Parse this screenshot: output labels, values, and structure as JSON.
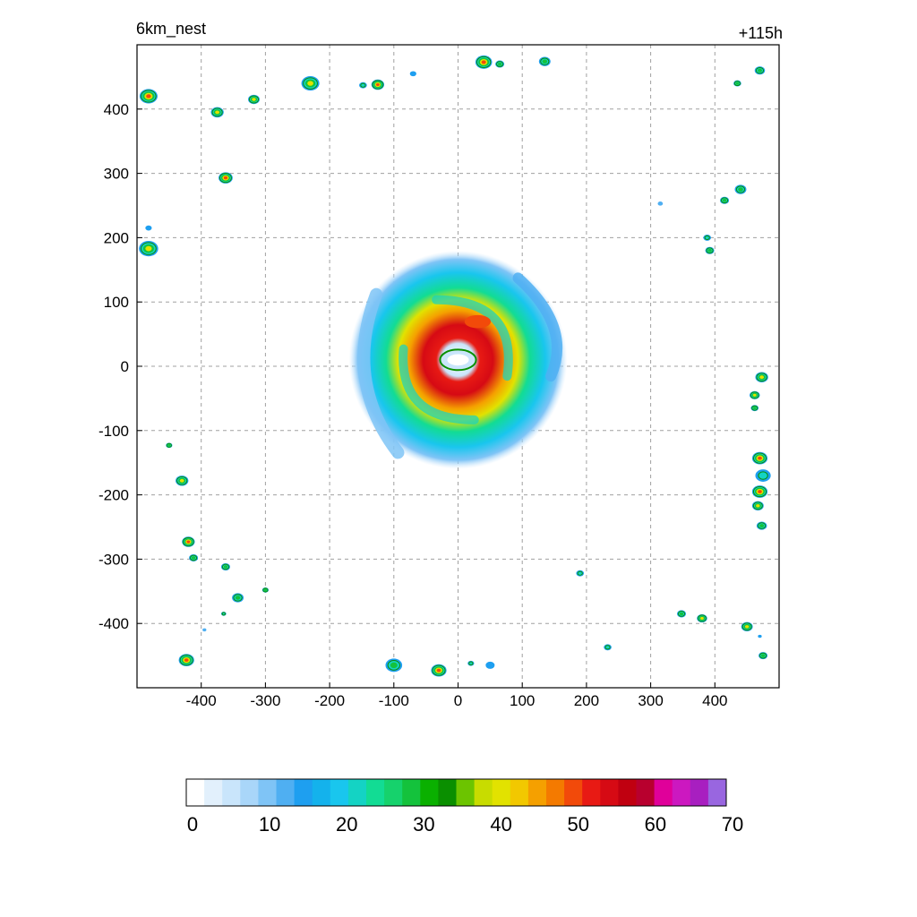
{
  "header": {
    "title": "6km_nest",
    "time": "+115h"
  },
  "colors": {
    "scale": [
      "#ffffff",
      "#e2f0fc",
      "#c9e5fb",
      "#a9d6f9",
      "#7fc4f6",
      "#4faff2",
      "#1e9ff0",
      "#14b2ec",
      "#19c6ee",
      "#14d3c4",
      "#12dc94",
      "#16d26c",
      "#14c23c",
      "#0ab000",
      "#0a8f00",
      "#6cc400",
      "#c8dc00",
      "#e2e200",
      "#f2c800",
      "#f5a000",
      "#f47a00",
      "#f24a0a",
      "#e81a14",
      "#d60a14",
      "#c00010",
      "#b8002e",
      "#e0009a",
      "#cc18c0",
      "#a81fc0",
      "#9966e0"
    ]
  },
  "chart_data": {
    "type": "heatmap",
    "title": "6km_nest",
    "annotation": "+115h",
    "xlabel": "",
    "ylabel": "",
    "xlim": [
      -500,
      500
    ],
    "ylim": [
      -500,
      500
    ],
    "xticks": [
      -400,
      -300,
      -200,
      -100,
      0,
      100,
      200,
      300,
      400
    ],
    "yticks": [
      -400,
      -300,
      -200,
      -100,
      0,
      100,
      200,
      300,
      400
    ],
    "grid": true,
    "colorbar": {
      "min": 0,
      "max": 70,
      "ticks": [
        0,
        10,
        20,
        30,
        40,
        50,
        60,
        70
      ],
      "placement": "bottom"
    },
    "storm": {
      "center": [
        0,
        10
      ],
      "outer_radius": 170,
      "eye_radius": [
        28,
        16
      ],
      "eyewall_value": 50,
      "rainband_value": 22
    },
    "cells": [
      {
        "x": -482,
        "y": 420,
        "r": 14,
        "v": 52
      },
      {
        "x": -375,
        "y": 395,
        "r": 10,
        "v": 46
      },
      {
        "x": -318,
        "y": 415,
        "r": 9,
        "v": 40
      },
      {
        "x": -230,
        "y": 440,
        "r": 14,
        "v": 42
      },
      {
        "x": -148,
        "y": 437,
        "r": 6,
        "v": 24
      },
      {
        "x": -125,
        "y": 438,
        "r": 10,
        "v": 50
      },
      {
        "x": -70,
        "y": 455,
        "r": 5,
        "v": 18
      },
      {
        "x": 40,
        "y": 473,
        "r": 13,
        "v": 50
      },
      {
        "x": 65,
        "y": 470,
        "r": 7,
        "v": 32
      },
      {
        "x": 135,
        "y": 474,
        "r": 9,
        "v": 34
      },
      {
        "x": 435,
        "y": 440,
        "r": 6,
        "v": 30
      },
      {
        "x": 470,
        "y": 460,
        "r": 8,
        "v": 38
      },
      {
        "x": -362,
        "y": 293,
        "r": 11,
        "v": 52
      },
      {
        "x": -482,
        "y": 183,
        "r": 15,
        "v": 46
      },
      {
        "x": -482,
        "y": 215,
        "r": 5,
        "v": 15
      },
      {
        "x": 315,
        "y": 253,
        "r": 4,
        "v": 12
      },
      {
        "x": 415,
        "y": 258,
        "r": 7,
        "v": 32
      },
      {
        "x": 440,
        "y": 275,
        "r": 9,
        "v": 34
      },
      {
        "x": 388,
        "y": 200,
        "r": 6,
        "v": 28
      },
      {
        "x": 392,
        "y": 180,
        "r": 7,
        "v": 36
      },
      {
        "x": 473,
        "y": -17,
        "r": 10,
        "v": 40
      },
      {
        "x": 462,
        "y": -45,
        "r": 8,
        "v": 46
      },
      {
        "x": 462,
        "y": -65,
        "r": 6,
        "v": 36
      },
      {
        "x": 470,
        "y": -143,
        "r": 12,
        "v": 52
      },
      {
        "x": 475,
        "y": -170,
        "r": 12,
        "v": 28
      },
      {
        "x": 470,
        "y": -195,
        "r": 12,
        "v": 50
      },
      {
        "x": 467,
        "y": -217,
        "r": 9,
        "v": 44
      },
      {
        "x": 473,
        "y": -248,
        "r": 8,
        "v": 32
      },
      {
        "x": -450,
        "y": -123,
        "r": 5,
        "v": 30
      },
      {
        "x": -430,
        "y": -178,
        "r": 10,
        "v": 42
      },
      {
        "x": -420,
        "y": -273,
        "r": 10,
        "v": 50
      },
      {
        "x": -412,
        "y": -298,
        "r": 7,
        "v": 32
      },
      {
        "x": -362,
        "y": -312,
        "r": 7,
        "v": 30
      },
      {
        "x": -343,
        "y": -360,
        "r": 9,
        "v": 34
      },
      {
        "x": -300,
        "y": -348,
        "r": 5,
        "v": 32
      },
      {
        "x": -365,
        "y": -385,
        "r": 4,
        "v": 24
      },
      {
        "x": -395,
        "y": -410,
        "r": 3,
        "v": 12
      },
      {
        "x": -423,
        "y": -457,
        "r": 12,
        "v": 50
      },
      {
        "x": -100,
        "y": -465,
        "r": 13,
        "v": 36
      },
      {
        "x": -30,
        "y": -473,
        "r": 12,
        "v": 52
      },
      {
        "x": 20,
        "y": -462,
        "r": 5,
        "v": 22
      },
      {
        "x": 50,
        "y": -465,
        "r": 7,
        "v": 20
      },
      {
        "x": 190,
        "y": -322,
        "r": 6,
        "v": 26
      },
      {
        "x": 233,
        "y": -437,
        "r": 6,
        "v": 28
      },
      {
        "x": 348,
        "y": -385,
        "r": 7,
        "v": 30
      },
      {
        "x": 380,
        "y": -392,
        "r": 8,
        "v": 42
      },
      {
        "x": 450,
        "y": -405,
        "r": 9,
        "v": 48
      },
      {
        "x": 475,
        "y": -450,
        "r": 7,
        "v": 34
      },
      {
        "x": 470,
        "y": -420,
        "r": 3,
        "v": 14
      }
    ]
  }
}
